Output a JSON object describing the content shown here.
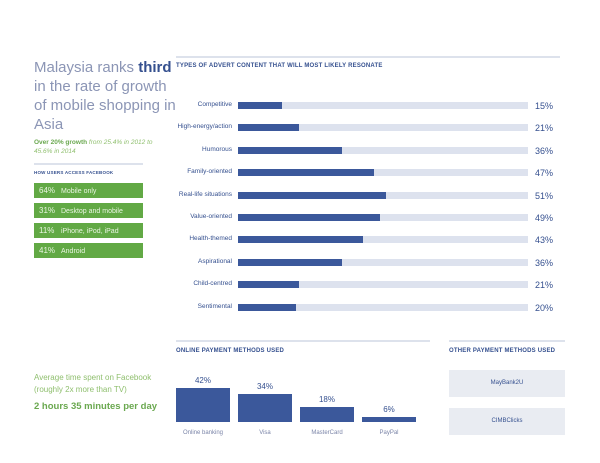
{
  "headline": {
    "pre": "Malaysia ranks ",
    "bold": "third",
    "post": " in the rate of growth of mobile shopping in Asia"
  },
  "growth": {
    "bold": "Over 20% growth",
    "rest": " from 25.4% in 2012 to 45.6% in 2014"
  },
  "access": {
    "title": "HOW USERS ACCESS FACEBOOK",
    "items": [
      {
        "pct": "64%",
        "label": "Mobile only"
      },
      {
        "pct": "31%",
        "label": "Desktop and mobile"
      },
      {
        "pct": "11%",
        "label": "iPhone, iPod, iPad"
      },
      {
        "pct": "41%",
        "label": "Android"
      }
    ]
  },
  "time": {
    "text": "Average time spent on Facebook (roughly 2x more than TV)",
    "value": "2 hours 35 minutes per day"
  },
  "other": {
    "title": "OTHER PAYMENT METHODS USED",
    "items": [
      "MayBank2U",
      "CIMBClicks"
    ]
  },
  "colors": {
    "bar": "#3b589b",
    "track": "#dde2ee",
    "green": "#62a945"
  },
  "chart_data": [
    {
      "type": "bar",
      "orientation": "horizontal",
      "title": "TYPES OF ADVERT CONTENT THAT WILL MOST LIKELY RESONATE",
      "categories": [
        "Competitive",
        "High-energy/action",
        "Humorous",
        "Family-oriented",
        "Real-life situations",
        "Value-oriented",
        "Health-themed",
        "Aspirational",
        "Child-centred",
        "Sentimental"
      ],
      "values": [
        15,
        21,
        36,
        47,
        51,
        49,
        43,
        36,
        21,
        20
      ],
      "labels": [
        "15%",
        "21%",
        "36%",
        "47%",
        "51%",
        "49%",
        "43%",
        "36%",
        "21%",
        "20%"
      ],
      "xlim": [
        0,
        100
      ]
    },
    {
      "type": "bar",
      "orientation": "vertical",
      "title": "ONLINE PAYMENT METHODS USED",
      "categories": [
        "Online banking",
        "Visa",
        "MasterCard",
        "PayPal"
      ],
      "values": [
        42,
        34,
        18,
        6
      ],
      "labels": [
        "42%",
        "34%",
        "18%",
        "6%"
      ]
    }
  ]
}
